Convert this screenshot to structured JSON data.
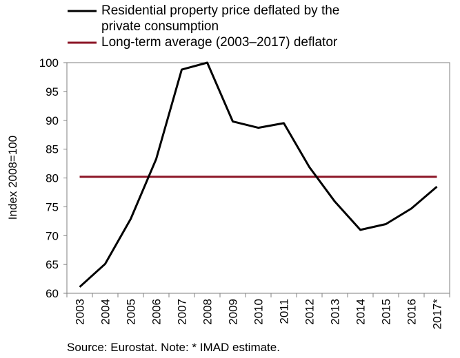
{
  "chart_data": {
    "type": "line",
    "title": "",
    "xlabel": "",
    "ylabel": "Index 2008=100",
    "ylim": [
      60,
      100
    ],
    "yticks": [
      60,
      65,
      70,
      75,
      80,
      85,
      90,
      95,
      100
    ],
    "grid": false,
    "legend_position": "top-left",
    "x": [
      "2003",
      "2004",
      "2005",
      "2006",
      "2007",
      "2008",
      "2009",
      "2010",
      "2011",
      "2012",
      "2013",
      "2014",
      "2015",
      "2016",
      "2017*"
    ],
    "series": [
      {
        "name": "Residential property price deflated by the private consumption",
        "legend_lines": [
          "Residential property price deflated by the",
          "private consumption"
        ],
        "color": "#000000",
        "values": [
          61.1,
          65.1,
          72.9,
          83.3,
          98.8,
          100.0,
          89.8,
          88.7,
          89.5,
          81.9,
          75.9,
          71.0,
          72.0,
          74.7,
          78.5
        ]
      },
      {
        "name": "Long-term average (2003–2017) deflator",
        "legend_lines": [
          "Long-term average (2003–2017) deflator"
        ],
        "color": "#8b1425",
        "values": [
          80.2,
          80.2,
          80.2,
          80.2,
          80.2,
          80.2,
          80.2,
          80.2,
          80.2,
          80.2,
          80.2,
          80.2,
          80.2,
          80.2,
          80.2
        ]
      }
    ],
    "source": "Source: Eurostat. Note: * IMAD estimate."
  }
}
